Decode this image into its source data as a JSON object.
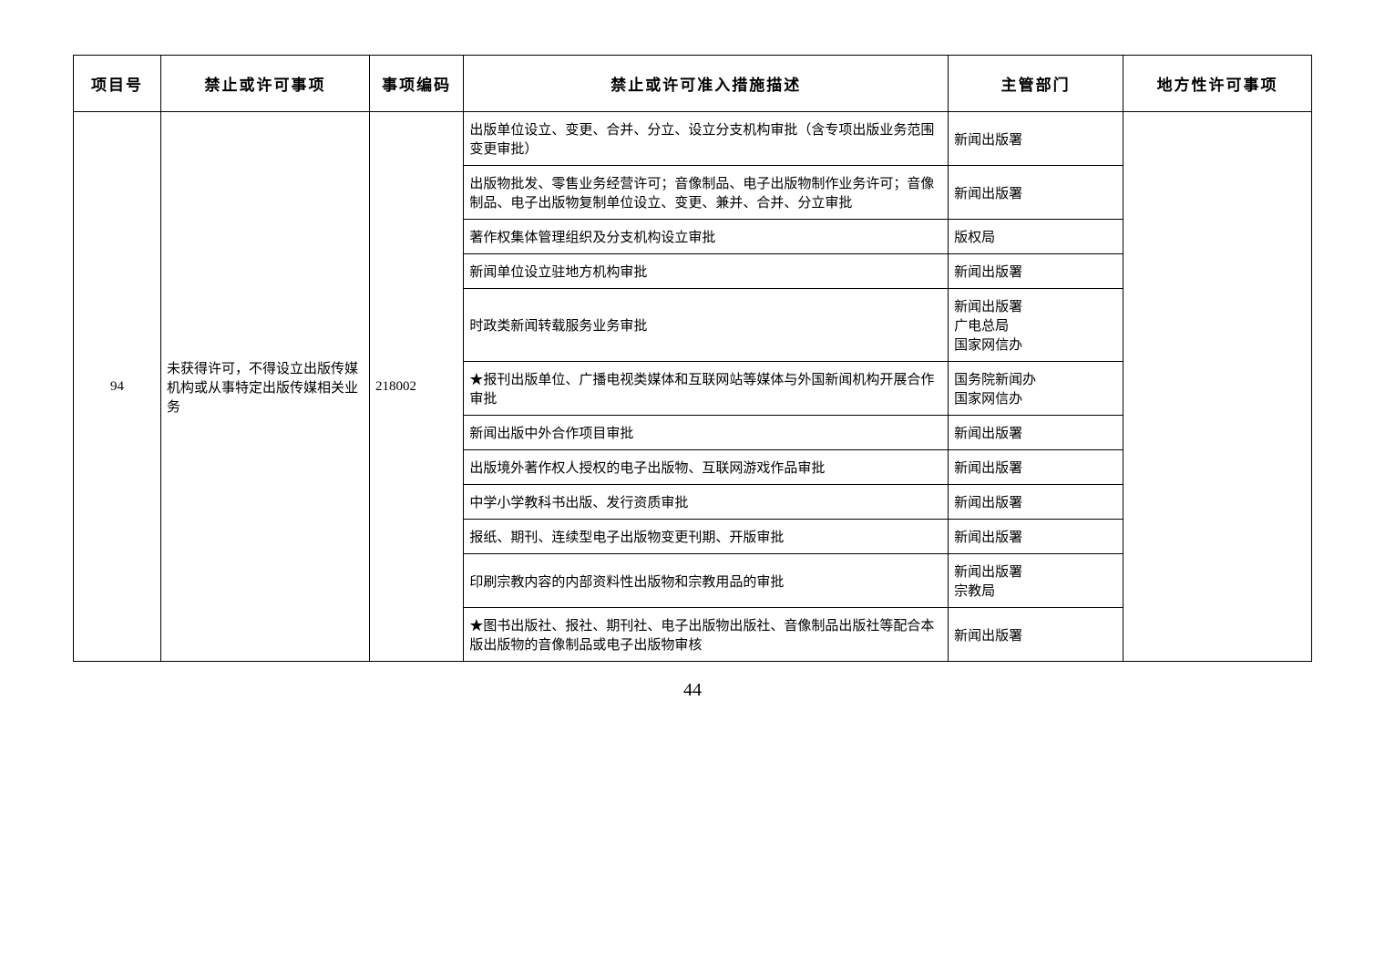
{
  "headers": {
    "col0": "项目号",
    "col1": "禁止或许可事项",
    "col2": "事项编码",
    "col3": "禁止或许可准入措施描述",
    "col4": "主管部门",
    "col5": "地方性许可事项"
  },
  "project_id": "94",
  "item_text": "未获得许可，不得设立出版传媒机构或从事特定出版传媒相关业务",
  "item_code": "218002",
  "rows": [
    {
      "desc": "出版单位设立、变更、合并、分立、设立分支机构审批（含专项出版业务范围变更审批）",
      "dept": "新闻出版署"
    },
    {
      "desc": "出版物批发、零售业务经营许可；音像制品、电子出版物制作业务许可；音像制品、电子出版物复制单位设立、变更、兼并、合并、分立审批",
      "dept": "新闻出版署"
    },
    {
      "desc": "著作权集体管理组织及分支机构设立审批",
      "dept": "版权局"
    },
    {
      "desc": "新闻单位设立驻地方机构审批",
      "dept": "新闻出版署"
    },
    {
      "desc": "时政类新闻转载服务业务审批",
      "dept": "新闻出版署\n广电总局\n国家网信办"
    },
    {
      "desc": "★报刊出版单位、广播电视类媒体和互联网站等媒体与外国新闻机构开展合作审批",
      "dept": "国务院新闻办\n国家网信办"
    },
    {
      "desc": "新闻出版中外合作项目审批",
      "dept": "新闻出版署"
    },
    {
      "desc": "出版境外著作权人授权的电子出版物、互联网游戏作品审批",
      "dept": "新闻出版署"
    },
    {
      "desc": "中学小学教科书出版、发行资质审批",
      "dept": "新闻出版署"
    },
    {
      "desc": "报纸、期刊、连续型电子出版物变更刊期、开版审批",
      "dept": "新闻出版署"
    },
    {
      "desc": "印刷宗教内容的内部资料性出版物和宗教用品的审批",
      "dept": "新闻出版署\n宗教局"
    },
    {
      "desc": "★图书出版社、报社、期刊社、电子出版物出版社、音像制品出版社等配合本版出版物的音像制品或电子出版物审核",
      "dept": "新闻出版署"
    }
  ],
  "page_number": "44"
}
